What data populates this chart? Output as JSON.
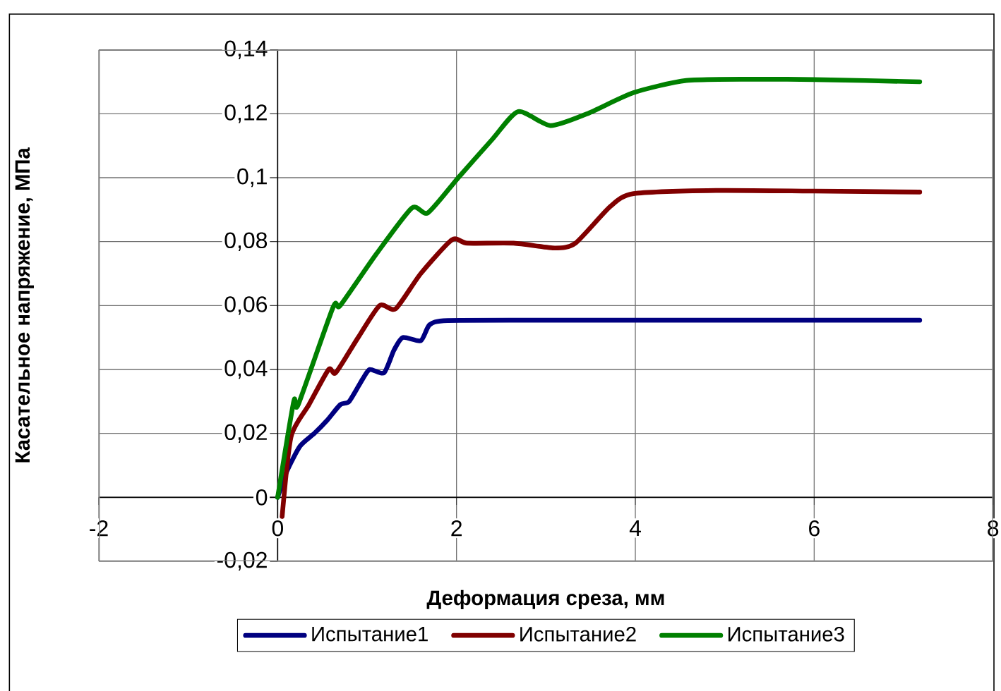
{
  "chart_data": {
    "type": "line",
    "xlabel": "Деформация среза, мм",
    "ylabel": "Касательное напряжение, МПа",
    "xlim": [
      -2,
      8
    ],
    "xticks": [
      -2,
      0,
      2,
      4,
      6,
      8
    ],
    "ylim": [
      -0.02,
      0.14
    ],
    "yticks": [
      {
        "value": -0.02,
        "label": "-0,02"
      },
      0,
      {
        "value": 0.02,
        "label": "0,02"
      },
      {
        "value": 0.04,
        "label": "0,04"
      },
      {
        "value": 0.06,
        "label": "0,06"
      },
      {
        "value": 0.08,
        "label": "0,08"
      },
      {
        "value": 0.1,
        "label": "0,1"
      },
      {
        "value": 0.12,
        "label": "0,12"
      },
      {
        "value": 0.14,
        "label": "0,14"
      }
    ],
    "grid": true,
    "legend": "bottom",
    "marker": "none",
    "line_style": "solid",
    "series": [
      {
        "name": "Испытание1",
        "color": "#000080",
        "x": [
          0,
          0.1,
          0.25,
          0.41,
          0.55,
          0.7,
          0.8,
          0.95,
          1.03,
          1.19,
          1.3,
          1.4,
          1.6,
          1.7,
          1.9,
          3,
          4,
          5,
          6,
          7.18
        ],
        "values": [
          0,
          0.008,
          0.016,
          0.02,
          0.024,
          0.029,
          0.03,
          0.037,
          0.04,
          0.039,
          0.046,
          0.05,
          0.049,
          0.054,
          0.0553,
          0.0554,
          0.0554,
          0.0554,
          0.0554,
          0.0554
        ]
      },
      {
        "name": "Испытание2",
        "color": "#800000",
        "x": [
          0.05,
          0.15,
          0.35,
          0.57,
          0.65,
          0.9,
          1.14,
          1.32,
          1.6,
          1.95,
          2.12,
          2.64,
          3.1,
          3.33,
          3.72,
          3.98,
          4.9,
          6,
          7.18
        ],
        "values": [
          -0.006,
          0.019,
          0.029,
          0.04,
          0.039,
          0.05,
          0.06,
          0.059,
          0.07,
          0.0806,
          0.0795,
          0.0795,
          0.078,
          0.0795,
          0.091,
          0.095,
          0.096,
          0.0958,
          0.0955
        ]
      },
      {
        "name": "Испытание3",
        "color": "#008000",
        "x": [
          0,
          0.18,
          0.23,
          0.62,
          0.7,
          1.1,
          1.5,
          1.68,
          2.02,
          2.4,
          2.69,
          3.05,
          3.46,
          3.98,
          4.57,
          5.3,
          6,
          7.18
        ],
        "values": [
          0,
          0.03,
          0.029,
          0.0595,
          0.06,
          0.076,
          0.0905,
          0.089,
          0.1,
          0.112,
          0.1207,
          0.1163,
          0.12,
          0.1266,
          0.1304,
          0.1308,
          0.1307,
          0.13
        ]
      }
    ]
  }
}
